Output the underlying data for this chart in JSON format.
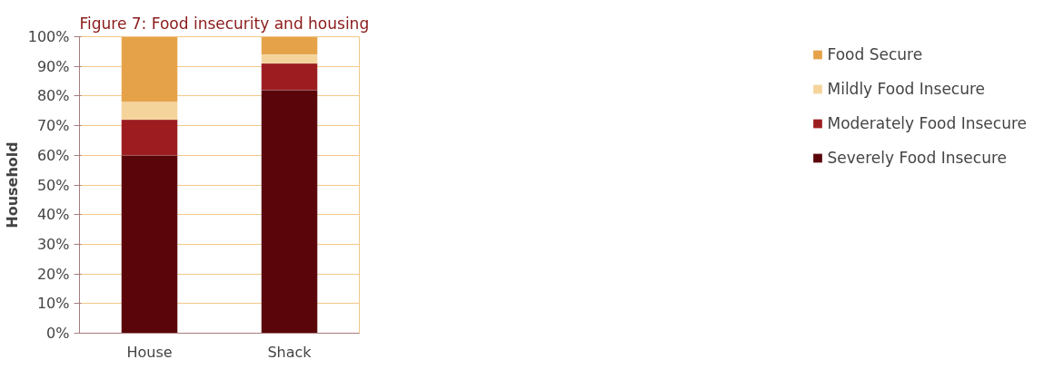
{
  "chart_data": {
    "type": "bar",
    "title": "Figure 7: Food insecurity and housing",
    "ylabel": "Household",
    "categories": [
      "House",
      "Shack"
    ],
    "stacked": true,
    "series": [
      {
        "name": "Severely Food Insecure",
        "color": "#5a050a",
        "values": [
          60,
          82
        ]
      },
      {
        "name": "Moderately Food Insecure",
        "color": "#9c1c20",
        "values": [
          12,
          9
        ]
      },
      {
        "name": "Mildly Food Insecure",
        "color": "#f5d49c",
        "values": [
          6,
          3
        ]
      },
      {
        "name": "Food Secure",
        "color": "#e6a248",
        "values": [
          22,
          6
        ]
      }
    ],
    "ylim": [
      0,
      100
    ],
    "yticks": [
      {
        "value": 0,
        "label": "0%"
      },
      {
        "value": 10,
        "label": "10%"
      },
      {
        "value": 20,
        "label": "20%"
      },
      {
        "value": 30,
        "label": "30%"
      },
      {
        "value": 40,
        "label": "40%"
      },
      {
        "value": 50,
        "label": "50%"
      },
      {
        "value": 60,
        "label": "60%"
      },
      {
        "value": 70,
        "label": "70%"
      },
      {
        "value": 80,
        "label": "80%"
      },
      {
        "value": 90,
        "label": "90%"
      },
      {
        "value": 100,
        "label": "100%"
      }
    ],
    "grid": "y",
    "legend": "right"
  }
}
